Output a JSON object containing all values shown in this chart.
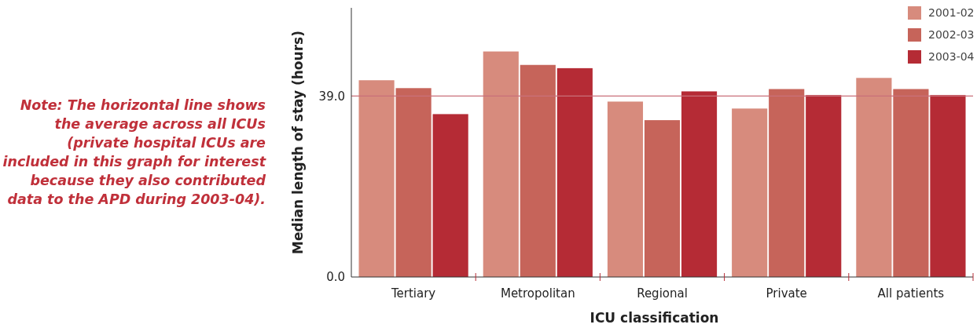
{
  "chart_data": {
    "type": "bar",
    "xlabel": "ICU classification",
    "ylabel": "Median length of stay (hours)",
    "categories": [
      "Tertiary",
      "Metropolitan",
      "Regional",
      "Private",
      "All patients"
    ],
    "series": [
      {
        "name": "2001-02",
        "color": "#d78b7d",
        "values": [
          42.4,
          48.6,
          37.8,
          36.3,
          42.9
        ]
      },
      {
        "name": "2002-03",
        "color": "#c6645a",
        "values": [
          40.7,
          45.7,
          33.8,
          40.5,
          40.5
        ]
      },
      {
        "name": "2003-04",
        "color": "#b52b35",
        "values": [
          35.1,
          45.0,
          40.0,
          39.2,
          39.2
        ]
      }
    ],
    "ylim": [
      0,
      58
    ],
    "yticks": [
      {
        "value": 0,
        "label": "0.0"
      },
      {
        "value": 39,
        "label": "39.0"
      }
    ],
    "ref_lines": [
      {
        "axis": "y",
        "value": 39,
        "color": "#c9707a"
      }
    ],
    "legend": "top right",
    "grid": false,
    "annotations": [
      "Note: The horizontal line shows\nthe average across all ICUs\n(private hospital ICUs are\nincluded in this graph for interest\nbecause they also contributed\ndata to the APD during 2003-04)."
    ]
  }
}
